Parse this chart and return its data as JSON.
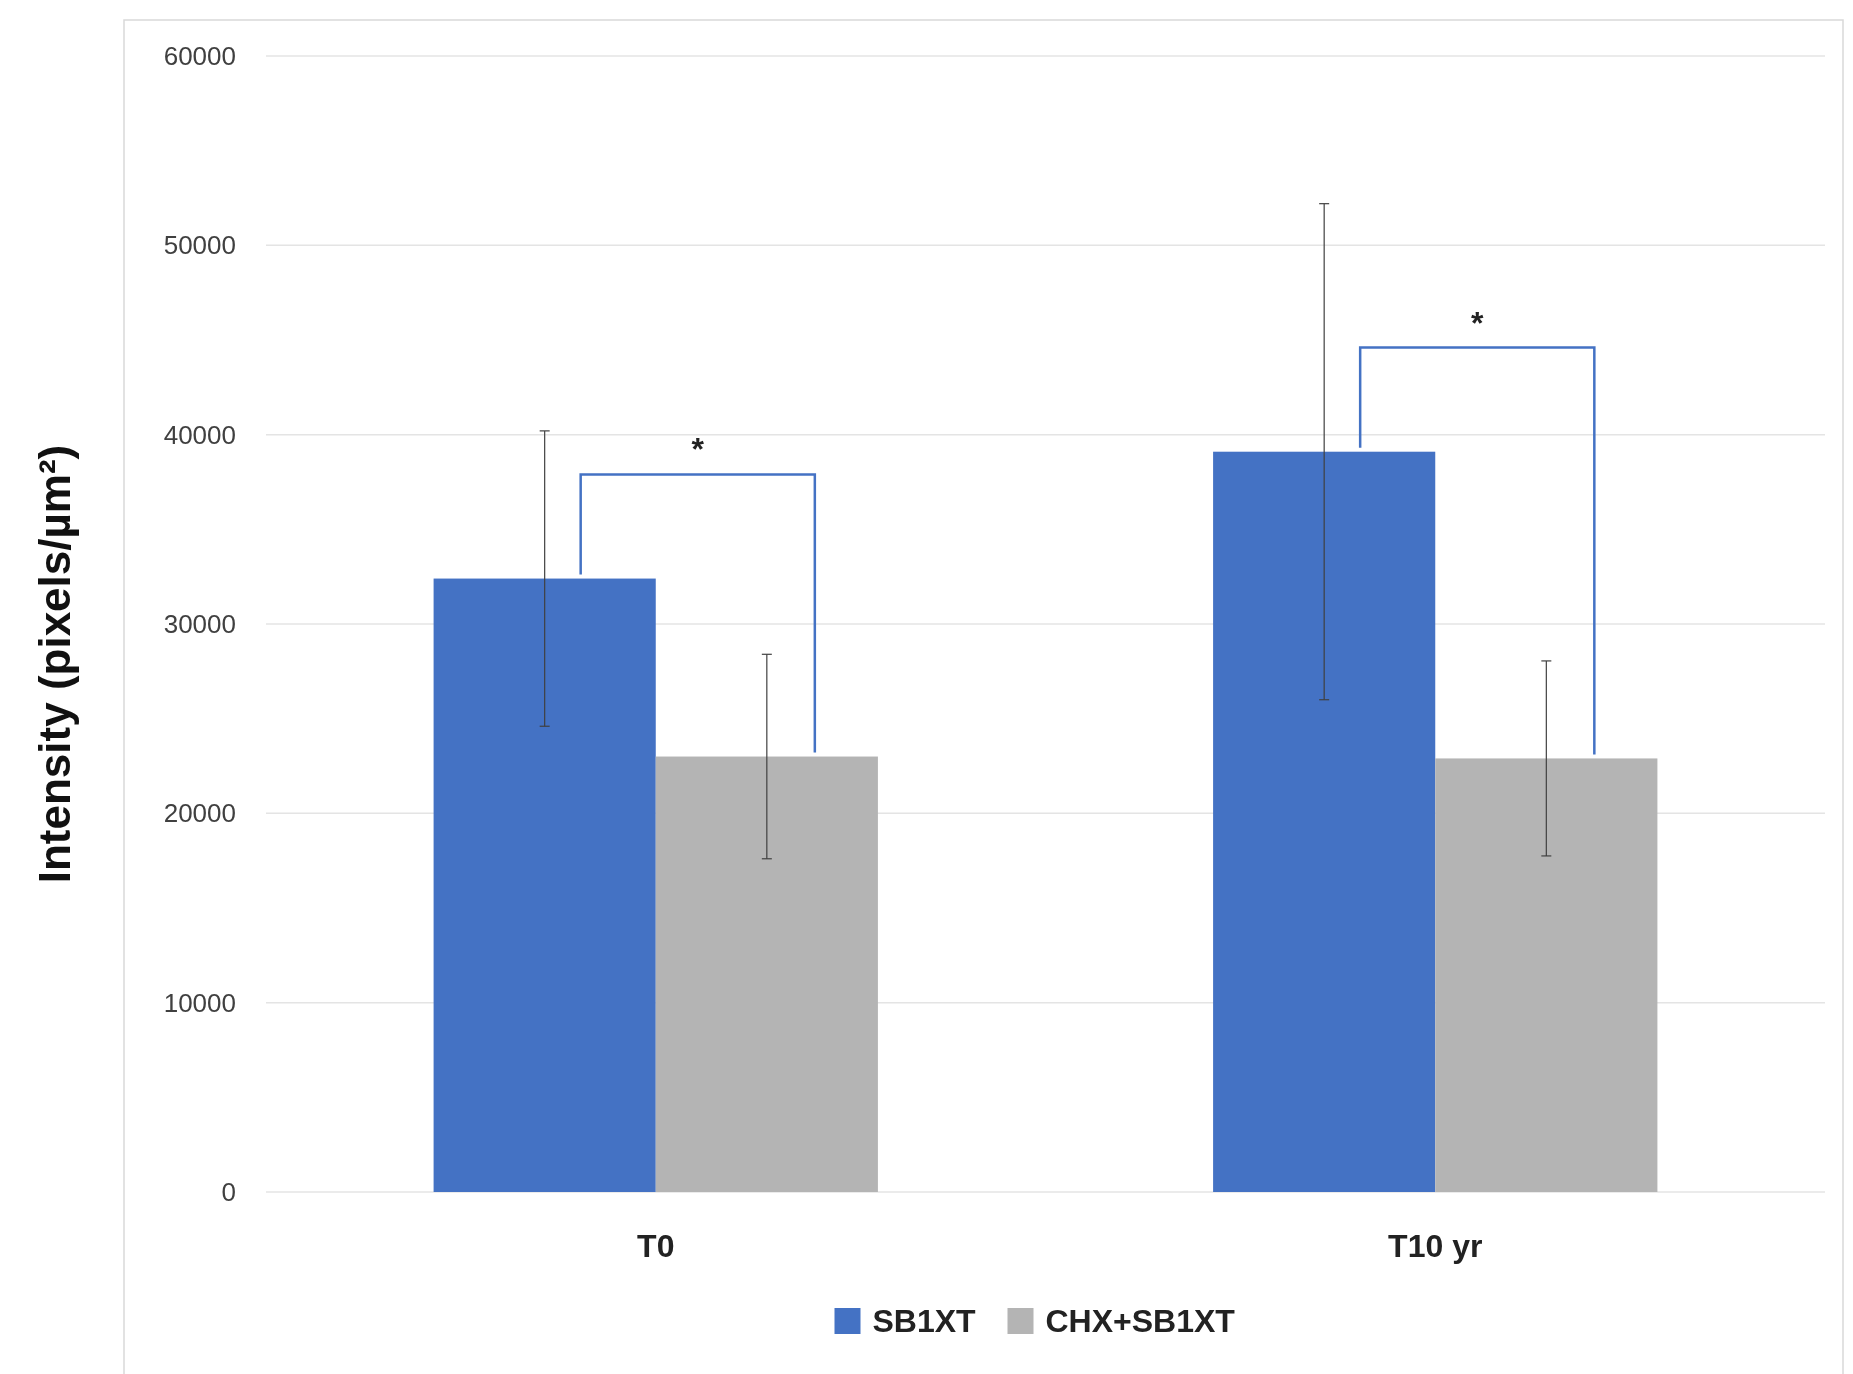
{
  "chart_data": {
    "type": "bar",
    "ylabel": "Intensity (pixels/µm²)",
    "categories": [
      "T0",
      "T10 yr"
    ],
    "series": [
      {
        "name": "SB1XT",
        "color": "#4472c4",
        "values": [
          32400,
          39100
        ],
        "errors": [
          7800,
          13100
        ]
      },
      {
        "name": "CHX+SB1XT",
        "color": "#b4b4b4",
        "values": [
          23000,
          22900
        ],
        "errors": [
          5400,
          5150
        ]
      }
    ],
    "ylim": [
      0,
      60000
    ],
    "yticks": [
      0,
      10000,
      20000,
      30000,
      40000,
      50000,
      60000
    ],
    "grid": "y",
    "legend": "bottom",
    "annotations": [
      "*",
      "*"
    ]
  }
}
